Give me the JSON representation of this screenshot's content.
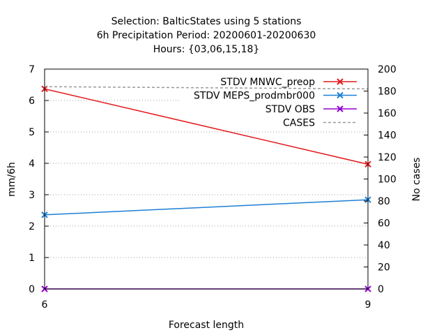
{
  "chart_data": {
    "type": "line",
    "title_lines": [
      "Selection: BalticStates using      5 stations",
      "6h Precipitation    Period: 20200601-20200630",
      "Hours: {03,06,15,18}"
    ],
    "xlabel": "Forecast length",
    "ylabel": "mm/6h",
    "y2label": "No cases",
    "x": [
      6,
      9
    ],
    "xticks": [
      "6",
      "9"
    ],
    "xlim": [
      6,
      9
    ],
    "ylim": [
      0,
      7
    ],
    "yticks": [
      "0",
      "1",
      "2",
      "3",
      "4",
      "5",
      "6",
      "7"
    ],
    "y2lim": [
      0,
      200
    ],
    "y2ticks": [
      "0",
      "20",
      "40",
      "60",
      "80",
      "100",
      "120",
      "140",
      "160",
      "180",
      "200"
    ],
    "grid": true,
    "legend_position": "top-right",
    "series": [
      {
        "name": "STDV MNWC_preop",
        "axis": "y",
        "color": "#e41a1c",
        "style": "solid",
        "marker": "x",
        "values": [
          6.37,
          3.97
        ]
      },
      {
        "name": "STDV MEPS_prodmbr000",
        "axis": "y",
        "color": "#1c7fd6",
        "style": "solid",
        "marker": "x",
        "values": [
          2.36,
          2.84
        ]
      },
      {
        "name": "STDV OBS",
        "axis": "y",
        "color": "#9400d3",
        "style": "solid",
        "marker": "x",
        "values": [
          0,
          0
        ]
      },
      {
        "name": "CASES",
        "axis": "y2",
        "color": "#999999",
        "style": "dashed",
        "marker": "none",
        "values": [
          184,
          182
        ]
      }
    ]
  }
}
